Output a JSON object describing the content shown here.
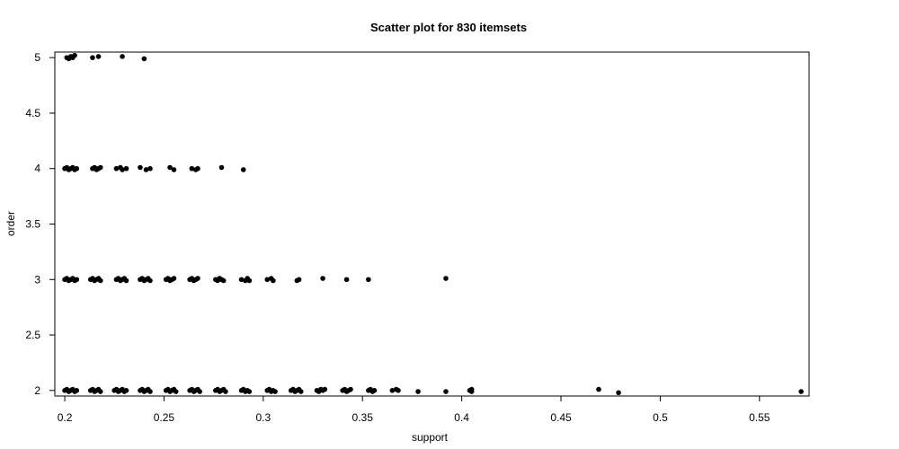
{
  "chart_data": {
    "type": "scatter",
    "title": "Scatter plot for 830 itemsets",
    "xlabel": "support",
    "ylabel": "order",
    "xlim": [
      0.195,
      0.575
    ],
    "ylim": [
      1.95,
      5.05
    ],
    "x_ticks": [
      0.2,
      0.25,
      0.3,
      0.35,
      0.4,
      0.45,
      0.5,
      0.55
    ],
    "x_tick_labels": [
      "0.2",
      "0.25",
      "0.3",
      "0.35",
      "0.4",
      "0.45",
      "0.5",
      "0.55"
    ],
    "y_ticks": [
      2,
      2.5,
      3,
      3.5,
      4,
      4.5,
      5
    ],
    "y_tick_labels": [
      "2",
      "2.5",
      "3",
      "3.5",
      "4",
      "4.5",
      "5"
    ],
    "grid": false,
    "legend": "none",
    "series": [
      {
        "color": "#000000",
        "points": [
          {
            "x": 0.201,
            "y": 5.0
          },
          {
            "x": 0.202,
            "y": 4.99
          },
          {
            "x": 0.203,
            "y": 5.01
          },
          {
            "x": 0.204,
            "y": 5.0
          },
          {
            "x": 0.205,
            "y": 5.02
          },
          {
            "x": 0.214,
            "y": 5.0
          },
          {
            "x": 0.217,
            "y": 5.01
          },
          {
            "x": 0.229,
            "y": 5.01
          },
          {
            "x": 0.24,
            "y": 4.99
          },
          {
            "x": 0.2,
            "y": 4.0
          },
          {
            "x": 0.201,
            "y": 4.01
          },
          {
            "x": 0.202,
            "y": 3.99
          },
          {
            "x": 0.203,
            "y": 4.0
          },
          {
            "x": 0.204,
            "y": 4.01
          },
          {
            "x": 0.205,
            "y": 3.99
          },
          {
            "x": 0.206,
            "y": 4.0
          },
          {
            "x": 0.214,
            "y": 4.0
          },
          {
            "x": 0.215,
            "y": 4.01
          },
          {
            "x": 0.216,
            "y": 3.99
          },
          {
            "x": 0.217,
            "y": 4.0
          },
          {
            "x": 0.218,
            "y": 4.01
          },
          {
            "x": 0.226,
            "y": 4.0
          },
          {
            "x": 0.228,
            "y": 4.01
          },
          {
            "x": 0.229,
            "y": 3.99
          },
          {
            "x": 0.231,
            "y": 4.0
          },
          {
            "x": 0.238,
            "y": 4.01
          },
          {
            "x": 0.241,
            "y": 3.99
          },
          {
            "x": 0.243,
            "y": 4.0
          },
          {
            "x": 0.253,
            "y": 4.01
          },
          {
            "x": 0.255,
            "y": 3.99
          },
          {
            "x": 0.264,
            "y": 4.0
          },
          {
            "x": 0.266,
            "y": 3.99
          },
          {
            "x": 0.267,
            "y": 4.0
          },
          {
            "x": 0.279,
            "y": 4.01
          },
          {
            "x": 0.29,
            "y": 3.99
          },
          {
            "x": 0.2,
            "y": 3.0
          },
          {
            "x": 0.201,
            "y": 3.01
          },
          {
            "x": 0.202,
            "y": 2.99
          },
          {
            "x": 0.203,
            "y": 3.0
          },
          {
            "x": 0.204,
            "y": 3.01
          },
          {
            "x": 0.205,
            "y": 2.99
          },
          {
            "x": 0.206,
            "y": 3.0
          },
          {
            "x": 0.213,
            "y": 3.0
          },
          {
            "x": 0.214,
            "y": 3.01
          },
          {
            "x": 0.215,
            "y": 2.99
          },
          {
            "x": 0.216,
            "y": 3.0
          },
          {
            "x": 0.217,
            "y": 3.01
          },
          {
            "x": 0.218,
            "y": 2.99
          },
          {
            "x": 0.226,
            "y": 3.0
          },
          {
            "x": 0.227,
            "y": 3.01
          },
          {
            "x": 0.228,
            "y": 2.99
          },
          {
            "x": 0.229,
            "y": 3.0
          },
          {
            "x": 0.23,
            "y": 3.01
          },
          {
            "x": 0.231,
            "y": 2.99
          },
          {
            "x": 0.238,
            "y": 3.0
          },
          {
            "x": 0.239,
            "y": 3.01
          },
          {
            "x": 0.24,
            "y": 2.99
          },
          {
            "x": 0.241,
            "y": 3.0
          },
          {
            "x": 0.242,
            "y": 3.01
          },
          {
            "x": 0.243,
            "y": 2.99
          },
          {
            "x": 0.251,
            "y": 3.0
          },
          {
            "x": 0.252,
            "y": 3.01
          },
          {
            "x": 0.253,
            "y": 2.99
          },
          {
            "x": 0.254,
            "y": 3.0
          },
          {
            "x": 0.255,
            "y": 3.01
          },
          {
            "x": 0.263,
            "y": 3.0
          },
          {
            "x": 0.264,
            "y": 3.01
          },
          {
            "x": 0.265,
            "y": 2.99
          },
          {
            "x": 0.266,
            "y": 3.0
          },
          {
            "x": 0.267,
            "y": 3.01
          },
          {
            "x": 0.276,
            "y": 3.0
          },
          {
            "x": 0.277,
            "y": 2.99
          },
          {
            "x": 0.278,
            "y": 3.01
          },
          {
            "x": 0.279,
            "y": 3.0
          },
          {
            "x": 0.28,
            "y": 2.99
          },
          {
            "x": 0.289,
            "y": 3.0
          },
          {
            "x": 0.291,
            "y": 2.99
          },
          {
            "x": 0.292,
            "y": 3.01
          },
          {
            "x": 0.293,
            "y": 2.99
          },
          {
            "x": 0.302,
            "y": 3.0
          },
          {
            "x": 0.304,
            "y": 3.01
          },
          {
            "x": 0.305,
            "y": 2.99
          },
          {
            "x": 0.317,
            "y": 2.99
          },
          {
            "x": 0.318,
            "y": 3.0
          },
          {
            "x": 0.33,
            "y": 3.01
          },
          {
            "x": 0.342,
            "y": 3.0
          },
          {
            "x": 0.353,
            "y": 3.0
          },
          {
            "x": 0.392,
            "y": 3.01
          },
          {
            "x": 0.2,
            "y": 2.0
          },
          {
            "x": 0.201,
            "y": 2.01
          },
          {
            "x": 0.202,
            "y": 1.99
          },
          {
            "x": 0.203,
            "y": 2.0
          },
          {
            "x": 0.204,
            "y": 2.01
          },
          {
            "x": 0.205,
            "y": 1.99
          },
          {
            "x": 0.206,
            "y": 2.0
          },
          {
            "x": 0.213,
            "y": 2.0
          },
          {
            "x": 0.214,
            "y": 2.01
          },
          {
            "x": 0.215,
            "y": 1.99
          },
          {
            "x": 0.216,
            "y": 2.0
          },
          {
            "x": 0.217,
            "y": 2.01
          },
          {
            "x": 0.218,
            "y": 1.99
          },
          {
            "x": 0.225,
            "y": 2.0
          },
          {
            "x": 0.226,
            "y": 2.01
          },
          {
            "x": 0.227,
            "y": 1.99
          },
          {
            "x": 0.228,
            "y": 2.0
          },
          {
            "x": 0.229,
            "y": 2.01
          },
          {
            "x": 0.23,
            "y": 1.99
          },
          {
            "x": 0.231,
            "y": 2.0
          },
          {
            "x": 0.238,
            "y": 2.0
          },
          {
            "x": 0.239,
            "y": 2.01
          },
          {
            "x": 0.24,
            "y": 1.99
          },
          {
            "x": 0.241,
            "y": 2.0
          },
          {
            "x": 0.242,
            "y": 2.01
          },
          {
            "x": 0.243,
            "y": 1.99
          },
          {
            "x": 0.251,
            "y": 2.0
          },
          {
            "x": 0.252,
            "y": 2.01
          },
          {
            "x": 0.253,
            "y": 1.99
          },
          {
            "x": 0.254,
            "y": 2.0
          },
          {
            "x": 0.255,
            "y": 2.01
          },
          {
            "x": 0.256,
            "y": 1.99
          },
          {
            "x": 0.263,
            "y": 2.0
          },
          {
            "x": 0.264,
            "y": 2.01
          },
          {
            "x": 0.265,
            "y": 1.99
          },
          {
            "x": 0.266,
            "y": 2.0
          },
          {
            "x": 0.267,
            "y": 2.01
          },
          {
            "x": 0.268,
            "y": 1.99
          },
          {
            "x": 0.276,
            "y": 2.0
          },
          {
            "x": 0.277,
            "y": 2.01
          },
          {
            "x": 0.278,
            "y": 1.99
          },
          {
            "x": 0.279,
            "y": 2.0
          },
          {
            "x": 0.28,
            "y": 2.01
          },
          {
            "x": 0.281,
            "y": 1.99
          },
          {
            "x": 0.289,
            "y": 2.0
          },
          {
            "x": 0.29,
            "y": 2.01
          },
          {
            "x": 0.291,
            "y": 1.99
          },
          {
            "x": 0.292,
            "y": 2.0
          },
          {
            "x": 0.293,
            "y": 1.99
          },
          {
            "x": 0.302,
            "y": 2.0
          },
          {
            "x": 0.303,
            "y": 2.01
          },
          {
            "x": 0.304,
            "y": 1.99
          },
          {
            "x": 0.305,
            "y": 2.0
          },
          {
            "x": 0.306,
            "y": 1.99
          },
          {
            "x": 0.314,
            "y": 2.0
          },
          {
            "x": 0.315,
            "y": 2.01
          },
          {
            "x": 0.316,
            "y": 1.99
          },
          {
            "x": 0.317,
            "y": 2.0
          },
          {
            "x": 0.318,
            "y": 2.01
          },
          {
            "x": 0.319,
            "y": 1.99
          },
          {
            "x": 0.327,
            "y": 2.0
          },
          {
            "x": 0.328,
            "y": 1.99
          },
          {
            "x": 0.329,
            "y": 2.01
          },
          {
            "x": 0.33,
            "y": 2.0
          },
          {
            "x": 0.331,
            "y": 2.01
          },
          {
            "x": 0.34,
            "y": 2.0
          },
          {
            "x": 0.341,
            "y": 2.01
          },
          {
            "x": 0.342,
            "y": 1.99
          },
          {
            "x": 0.343,
            "y": 2.0
          },
          {
            "x": 0.344,
            "y": 2.01
          },
          {
            "x": 0.353,
            "y": 2.0
          },
          {
            "x": 0.354,
            "y": 2.01
          },
          {
            "x": 0.355,
            "y": 1.99
          },
          {
            "x": 0.356,
            "y": 2.0
          },
          {
            "x": 0.365,
            "y": 2.0
          },
          {
            "x": 0.367,
            "y": 2.01
          },
          {
            "x": 0.368,
            "y": 2.0
          },
          {
            "x": 0.378,
            "y": 1.99
          },
          {
            "x": 0.392,
            "y": 1.99
          },
          {
            "x": 0.404,
            "y": 2.0
          },
          {
            "x": 0.405,
            "y": 2.01
          },
          {
            "x": 0.405,
            "y": 1.99
          },
          {
            "x": 0.469,
            "y": 2.01
          },
          {
            "x": 0.479,
            "y": 1.98
          },
          {
            "x": 0.571,
            "y": 1.99
          }
        ]
      }
    ]
  }
}
